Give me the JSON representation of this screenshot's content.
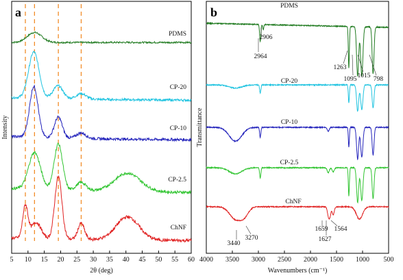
{
  "chart_data": [
    {
      "panel": "a",
      "type": "line",
      "xlabel": "2θ (deg)",
      "ylabel": "Intensity",
      "xlim": [
        5,
        60
      ],
      "xticks": [
        "5",
        "10",
        "15",
        "20",
        "25",
        "30",
        "35",
        "40",
        "45",
        "50",
        "55",
        "60"
      ],
      "grid": false,
      "reference_lines_x": [
        9.2,
        12.0,
        19.3,
        26.3
      ],
      "series": [
        {
          "name": "PDMS",
          "color": "#1f7a1f",
          "peaks": [
            {
              "x": 12.0,
              "h": 0.18,
              "w": 2.2
            }
          ],
          "baseline": 0.0,
          "noise": 0.03
        },
        {
          "name": "CP-20",
          "color": "#1ec3e0",
          "peaks": [
            {
              "x": 11.8,
              "h": 1.0,
              "w": 1.6
            },
            {
              "x": 19.2,
              "h": 0.28,
              "w": 1.5
            },
            {
              "x": 26.3,
              "h": 0.12,
              "w": 1.5
            }
          ],
          "baseline": 0.08,
          "noise": 0.05
        },
        {
          "name": "CP-10",
          "color": "#2222bb",
          "peaks": [
            {
              "x": 11.8,
              "h": 1.1,
              "w": 1.3
            },
            {
              "x": 19.3,
              "h": 0.45,
              "w": 1.2
            },
            {
              "x": 26.3,
              "h": 0.12,
              "w": 1.4
            }
          ],
          "baseline": 0.1,
          "noise": 0.06
        },
        {
          "name": "CP-2.5",
          "color": "#2fc42f",
          "peaks": [
            {
              "x": 12.0,
              "h": 0.8,
              "w": 1.8
            },
            {
              "x": 19.3,
              "h": 1.0,
              "w": 1.3
            },
            {
              "x": 26.3,
              "h": 0.18,
              "w": 1.5
            },
            {
              "x": 40.5,
              "h": 0.4,
              "w": 4.0
            }
          ],
          "baseline": 0.12,
          "noise": 0.06
        },
        {
          "name": "ChNF",
          "color": "#e02020",
          "peaks": [
            {
              "x": 9.2,
              "h": 0.7,
              "w": 0.8
            },
            {
              "x": 12.5,
              "h": 0.35,
              "w": 1.5
            },
            {
              "x": 19.3,
              "h": 1.35,
              "w": 1.1
            },
            {
              "x": 26.3,
              "h": 0.35,
              "w": 1.0
            },
            {
              "x": 40.5,
              "h": 0.5,
              "w": 3.5
            }
          ],
          "baseline": 0.08,
          "noise": 0.07
        }
      ]
    },
    {
      "panel": "b",
      "type": "line",
      "xlabel": "Wavenumbers (cm⁻¹)",
      "ylabel": "Transmittance",
      "xlim": [
        4000,
        500
      ],
      "xticks": [
        "4000",
        "3500",
        "3000",
        "2500",
        "2000",
        "1500",
        "1000",
        "500"
      ],
      "grid": false,
      "series": [
        {
          "name": "PDMS",
          "color": "#1f7a1f",
          "bands": [
            {
              "x": 2964,
              "d": 0.35,
              "w": 12
            },
            {
              "x": 2906,
              "d": 0.1,
              "w": 10
            },
            {
              "x": 1263,
              "d": 0.85,
              "w": 10
            },
            {
              "x": 1095,
              "d": 1.0,
              "w": 20
            },
            {
              "x": 1015,
              "d": 1.0,
              "w": 22
            },
            {
              "x": 798,
              "d": 0.95,
              "w": 18
            }
          ]
        },
        {
          "name": "CP-20",
          "color": "#1ec3e0",
          "bands": [
            {
              "x": 3440,
              "d": 0.1,
              "w": 120
            },
            {
              "x": 2964,
              "d": 0.25,
              "w": 12
            },
            {
              "x": 1263,
              "d": 0.55,
              "w": 10
            },
            {
              "x": 1095,
              "d": 0.8,
              "w": 20
            },
            {
              "x": 1015,
              "d": 0.75,
              "w": 22
            },
            {
              "x": 798,
              "d": 0.7,
              "w": 18
            }
          ]
        },
        {
          "name": "CP-10",
          "color": "#2222bb",
          "bands": [
            {
              "x": 3440,
              "d": 0.35,
              "w": 120
            },
            {
              "x": 2964,
              "d": 0.25,
              "w": 12
            },
            {
              "x": 1659,
              "d": 0.1,
              "w": 20
            },
            {
              "x": 1263,
              "d": 0.5,
              "w": 10
            },
            {
              "x": 1095,
              "d": 0.8,
              "w": 20
            },
            {
              "x": 1015,
              "d": 0.75,
              "w": 22
            },
            {
              "x": 798,
              "d": 0.7,
              "w": 18
            }
          ]
        },
        {
          "name": "CP-2.5",
          "color": "#2fc42f",
          "bands": [
            {
              "x": 3440,
              "d": 0.15,
              "w": 120
            },
            {
              "x": 2964,
              "d": 0.25,
              "w": 12
            },
            {
              "x": 1659,
              "d": 0.12,
              "w": 20
            },
            {
              "x": 1564,
              "d": 0.1,
              "w": 20
            },
            {
              "x": 1263,
              "d": 0.7,
              "w": 10
            },
            {
              "x": 1095,
              "d": 0.85,
              "w": 20
            },
            {
              "x": 1015,
              "d": 0.8,
              "w": 22
            },
            {
              "x": 798,
              "d": 0.75,
              "w": 18
            }
          ]
        },
        {
          "name": "ChNF",
          "color": "#e02020",
          "bands": [
            {
              "x": 3440,
              "d": 0.45,
              "w": 110
            },
            {
              "x": 3270,
              "d": 0.3,
              "w": 80
            },
            {
              "x": 1659,
              "d": 0.3,
              "w": 18
            },
            {
              "x": 1627,
              "d": 0.35,
              "w": 18
            },
            {
              "x": 1564,
              "d": 0.3,
              "w": 20
            },
            {
              "x": 1060,
              "d": 0.45,
              "w": 60
            }
          ]
        }
      ],
      "annotations": [
        {
          "series": "PDMS",
          "label": "2964"
        },
        {
          "series": "PDMS",
          "label": "2906"
        },
        {
          "series": "PDMS",
          "label": "1263"
        },
        {
          "series": "PDMS",
          "label": "1095"
        },
        {
          "series": "PDMS",
          "label": "1015"
        },
        {
          "series": "PDMS",
          "label": "798"
        },
        {
          "series": "ChNF",
          "label": "3440"
        },
        {
          "series": "ChNF",
          "label": "3270"
        },
        {
          "series": "ChNF",
          "label": "1659"
        },
        {
          "series": "ChNF",
          "label": "1627"
        },
        {
          "series": "ChNF",
          "label": "1564"
        }
      ]
    }
  ]
}
